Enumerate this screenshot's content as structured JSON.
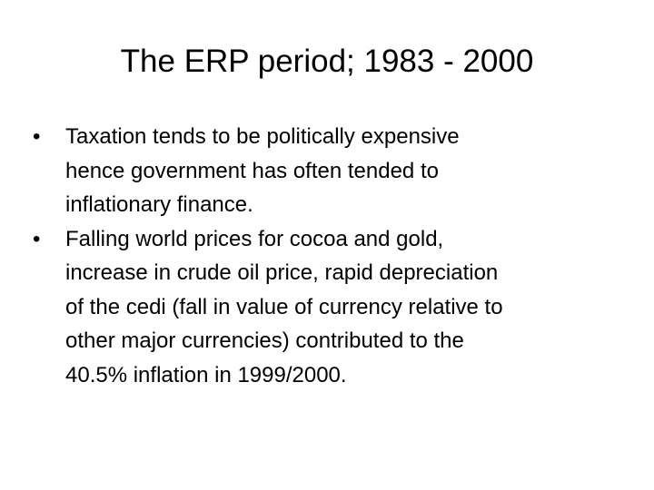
{
  "title": "The ERP period; 1983 - 2000",
  "bullets": [
    {
      "lines": [
        "Taxation tends to be politically expensive",
        "hence government has often tended to",
        "inflationary finance."
      ]
    },
    {
      "lines": [
        "Falling world prices for cocoa and gold,",
        "increase in crude oil price, rapid depreciation",
        "of the cedi (fall in value of currency relative to",
        "other major currencies) contributed to the",
        "40.5% inflation in 1999/2000."
      ]
    }
  ]
}
